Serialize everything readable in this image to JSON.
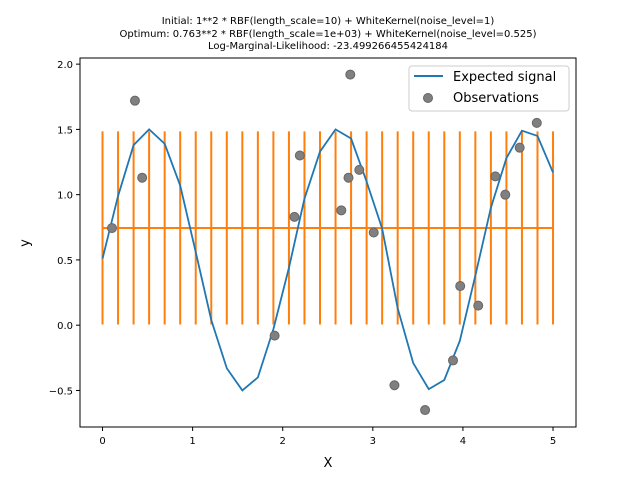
{
  "chart_data": {
    "type": "line",
    "title": [
      "Initial: 1**2 * RBF(length_scale=10) + WhiteKernel(noise_level=1)",
      "Optimum: 0.763**2 * RBF(length_scale=1e+03) + WhiteKernel(noise_level=0.525)",
      "Log-Marginal-Likelihood: -23.499266455424184"
    ],
    "xlabel": "X",
    "ylabel": "y",
    "xlim": [
      -0.25,
      5.255
    ],
    "ylim": [
      -0.78,
      2.047
    ],
    "xticks": [
      0,
      1,
      2,
      3,
      4,
      5
    ],
    "xtick_labels": [
      "0",
      "1",
      "2",
      "3",
      "4",
      "5"
    ],
    "yticks": [
      -0.5,
      0.0,
      0.5,
      1.0,
      1.5,
      2.0
    ],
    "ytick_labels": [
      "−0.5",
      "0.0",
      "0.5",
      "1.0",
      "1.5",
      "2.0"
    ],
    "grid": false,
    "legend": {
      "placement": "top-right",
      "entries": [
        "Expected signal",
        "Observations"
      ]
    },
    "colors": {
      "signal": "#1f77b4",
      "prediction": "#ff7f0e",
      "observations": "#808080"
    },
    "expected_signal": {
      "name": "Expected signal",
      "x_start": 0,
      "x_end": 5,
      "n": 30,
      "y": [
        0.51,
        0.99,
        1.38,
        1.5,
        1.39,
        1.07,
        0.56,
        0.04,
        -0.33,
        -0.5,
        -0.4,
        -0.03,
        0.44,
        0.97,
        1.33,
        1.5,
        1.43,
        1.1,
        0.74,
        0.13,
        -0.29,
        -0.49,
        -0.42,
        -0.12,
        0.38,
        0.9,
        1.28,
        1.49,
        1.45,
        1.17
      ]
    },
    "prediction": {
      "mean": 0.745,
      "std_band": 0.74,
      "x_start": 0,
      "x_end": 5,
      "n": 30
    },
    "observations": {
      "name": "Observations",
      "x": [
        0.105,
        0.36,
        0.44,
        1.91,
        2.13,
        2.19,
        2.65,
        2.75,
        2.73,
        2.85,
        3.01,
        3.24,
        3.58,
        3.89,
        3.97,
        4.17,
        4.36,
        4.47,
        4.63,
        4.82
      ],
      "y": [
        0.744,
        1.72,
        1.13,
        -0.08,
        0.83,
        1.3,
        0.88,
        1.92,
        1.13,
        1.19,
        0.71,
        -0.46,
        -0.65,
        -0.27,
        0.3,
        0.15,
        1.14,
        1.0,
        1.36,
        1.55
      ]
    }
  }
}
